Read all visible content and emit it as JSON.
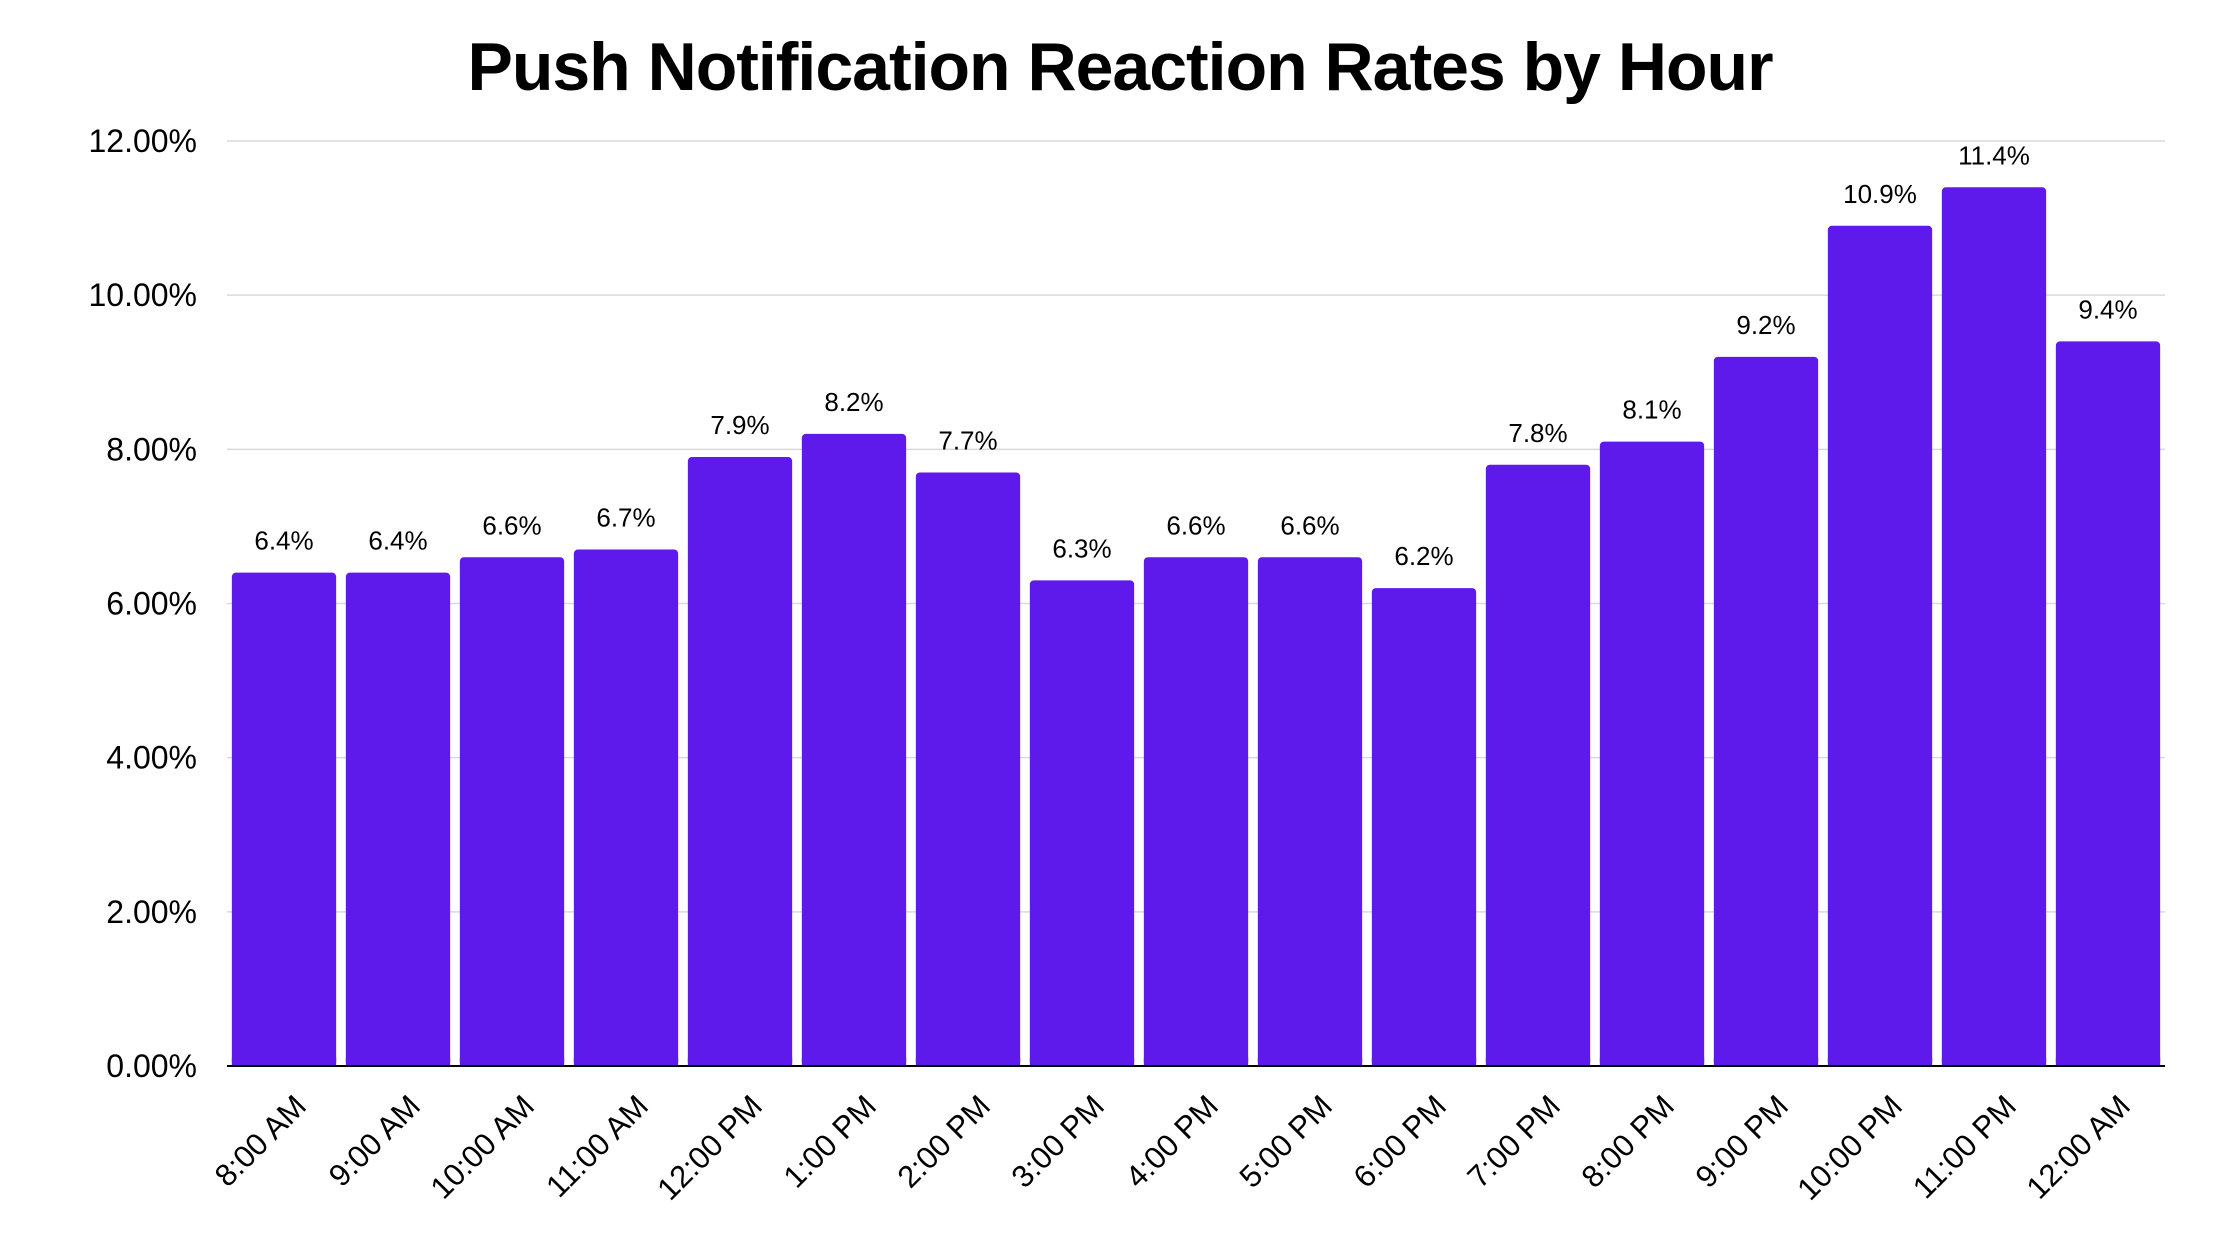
{
  "chart_data": {
    "type": "bar",
    "title": "Push Notification Reaction Rates by Hour",
    "xlabel": "",
    "ylabel": "",
    "categories": [
      "8:00 AM",
      "9:00 AM",
      "10:00 AM",
      "11:00 AM",
      "12:00 PM",
      "1:00 PM",
      "2:00 PM",
      "3:00 PM",
      "4:00 PM",
      "5:00 PM",
      "6:00 PM",
      "7:00 PM",
      "8:00 PM",
      "9:00 PM",
      "10:00 PM",
      "11:00 PM",
      "12:00 AM"
    ],
    "values": [
      6.4,
      6.4,
      6.6,
      6.7,
      7.9,
      8.2,
      7.7,
      6.3,
      6.6,
      6.6,
      6.2,
      7.8,
      8.1,
      9.2,
      10.9,
      11.4,
      9.4
    ],
    "data_labels": [
      "6.4%",
      "6.4%",
      "6.6%",
      "6.7%",
      "7.9%",
      "8.2%",
      "7.7%",
      "6.3%",
      "6.6%",
      "6.6%",
      "6.2%",
      "7.8%",
      "8.1%",
      "9.2%",
      "10.9%",
      "11.4%",
      "9.4%"
    ],
    "y_ticks": [
      0,
      2,
      4,
      6,
      8,
      10,
      12
    ],
    "y_tick_labels": [
      "0.00%",
      "2.00%",
      "4.00%",
      "6.00%",
      "8.00%",
      "10.00%",
      "12.00%"
    ],
    "ylim": [
      0,
      12
    ],
    "grid": true,
    "legend": "none",
    "colors": {
      "bar": "#5e1aea",
      "grid": "#d9d9d9",
      "axis": "#000000",
      "text": "#000000"
    }
  }
}
